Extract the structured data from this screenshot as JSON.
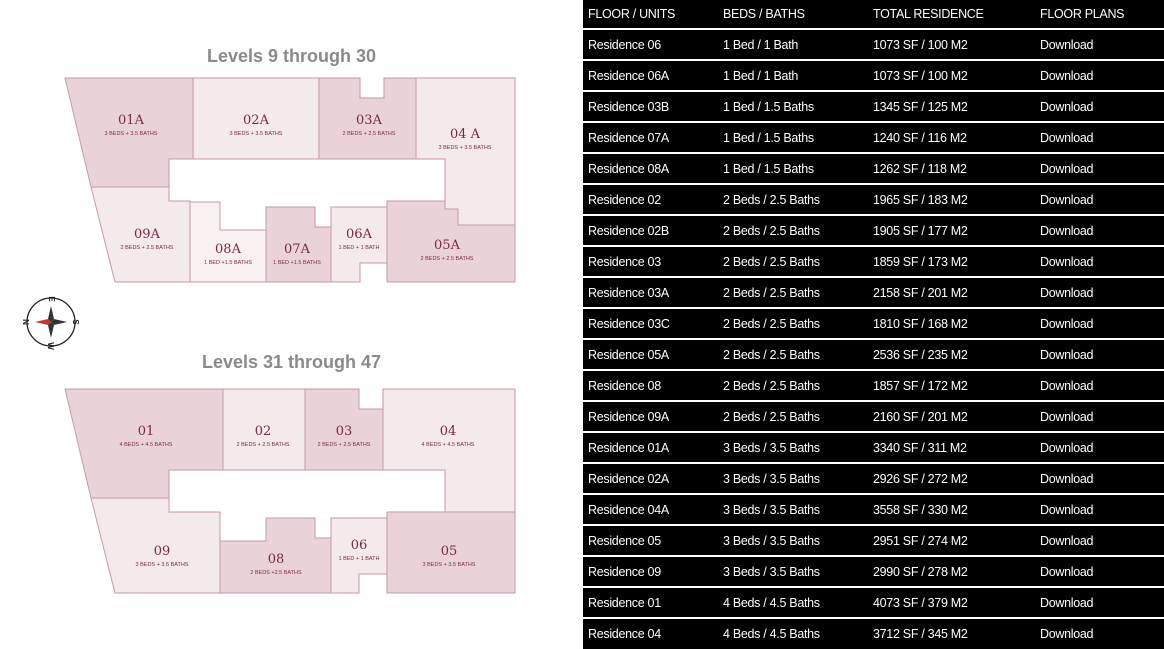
{
  "plans": [
    {
      "title": "Levels 9 through 30",
      "units": [
        {
          "id": "01A",
          "desc": "3 BEDS + 3.5 BATHS"
        },
        {
          "id": "02A",
          "desc": "3 BEDS + 3.5 BATHS"
        },
        {
          "id": "03A",
          "desc": "2 BEDS + 2.5 BATHS"
        },
        {
          "id": "04 A",
          "desc": "3 BEDS + 3.5 BATHS"
        },
        {
          "id": "05A",
          "desc": "2 BEDS + 2.5 BATHS"
        },
        {
          "id": "06A",
          "desc": "1 BED + 1 BATH"
        },
        {
          "id": "07A",
          "desc": "1 BED +1.5 BATHS"
        },
        {
          "id": "08A",
          "desc": "1 BED +1.5 BATHS"
        },
        {
          "id": "09A",
          "desc": "2 BEDS + 2.5 BATHS"
        }
      ]
    },
    {
      "title": "Levels 31 through 47",
      "units": [
        {
          "id": "01",
          "desc": "4 BEDS + 4.5 BATHS"
        },
        {
          "id": "02",
          "desc": "2 BEDS + 2.5 BATHS"
        },
        {
          "id": "03",
          "desc": "2 BEDS + 2.5 BATHS"
        },
        {
          "id": "04",
          "desc": "4 BEDS + 4.5 BATHS"
        },
        {
          "id": "05",
          "desc": "3 BEDS + 3.5 BATHS"
        },
        {
          "id": "06",
          "desc": "1 BED + 1 BATH"
        },
        {
          "id": "08",
          "desc": "2 BEDS +2.5 BATHS"
        },
        {
          "id": "09",
          "desc": "3 BEDS + 3.5 BATHS"
        }
      ]
    }
  ],
  "compass": {
    "n": "N",
    "e": "E",
    "s": "S",
    "w": "W"
  },
  "table": {
    "headers": [
      "FLOOR / UNITS",
      "BEDS / BATHS",
      "TOTAL RESIDENCE",
      "FLOOR PLANS"
    ],
    "rows": [
      [
        "Residence 06",
        "1 Bed / 1 Bath",
        "1073 SF / 100 M2",
        "Download"
      ],
      [
        "Residence 06A",
        "1 Bed / 1 Bath",
        "1073 SF / 100 M2",
        "Download"
      ],
      [
        "Residence 03B",
        "1 Bed / 1.5 Baths",
        "1345 SF / 125 M2",
        "Download"
      ],
      [
        "Residence 07A",
        "1 Bed / 1.5 Baths",
        "1240 SF / 116 M2",
        "Download"
      ],
      [
        "Residence 08A",
        "1 Bed / 1.5 Baths",
        "1262 SF / 118 M2",
        "Download"
      ],
      [
        "Residence 02",
        "2 Beds / 2.5 Baths",
        "1965 SF / 183 M2",
        "Download"
      ],
      [
        "Residence 02B",
        "2 Beds / 2.5 Baths",
        "1905 SF / 177 M2",
        "Download"
      ],
      [
        "Residence 03",
        "2 Beds / 2.5 Baths",
        "1859 SF / 173 M2",
        "Download"
      ],
      [
        "Residence 03A",
        "2 Beds / 2.5 Baths",
        "2158 SF / 201 M2",
        "Download"
      ],
      [
        "Residence 03C",
        "2 Beds / 2.5 Baths",
        "1810 SF / 168 M2",
        "Download"
      ],
      [
        "Residence 05A",
        "2 Beds / 2.5 Baths",
        "2536 SF / 235 M2",
        "Download"
      ],
      [
        "Residence 08",
        "2 Beds / 2.5 Baths",
        "1857 SF / 172 M2",
        "Download"
      ],
      [
        "Residence 09A",
        "2 Beds / 2.5 Baths",
        "2160 SF / 201 M2",
        "Download"
      ],
      [
        "Residence 01A",
        "3 Beds / 3.5 Baths",
        "3340 SF / 311 M2",
        "Download"
      ],
      [
        "Residence 02A",
        "3 Beds / 3.5 Baths",
        "2926 SF / 272 M2",
        "Download"
      ],
      [
        "Residence 04A",
        "3 Beds / 3.5 Baths",
        "3558 SF / 330 M2",
        "Download"
      ],
      [
        "Residence 05",
        "3 Beds / 3.5 Baths",
        "2951 SF / 274 M2",
        "Download"
      ],
      [
        "Residence 09",
        "3 Beds / 3.5 Baths",
        "2990 SF / 278 M2",
        "Download"
      ],
      [
        "Residence 01",
        "4 Beds / 4.5 Baths",
        "4073 SF / 379 M2",
        "Download"
      ],
      [
        "Residence 04",
        "4 Beds / 4.5 Baths",
        "3712 SF / 345 M2",
        "Download"
      ]
    ]
  }
}
